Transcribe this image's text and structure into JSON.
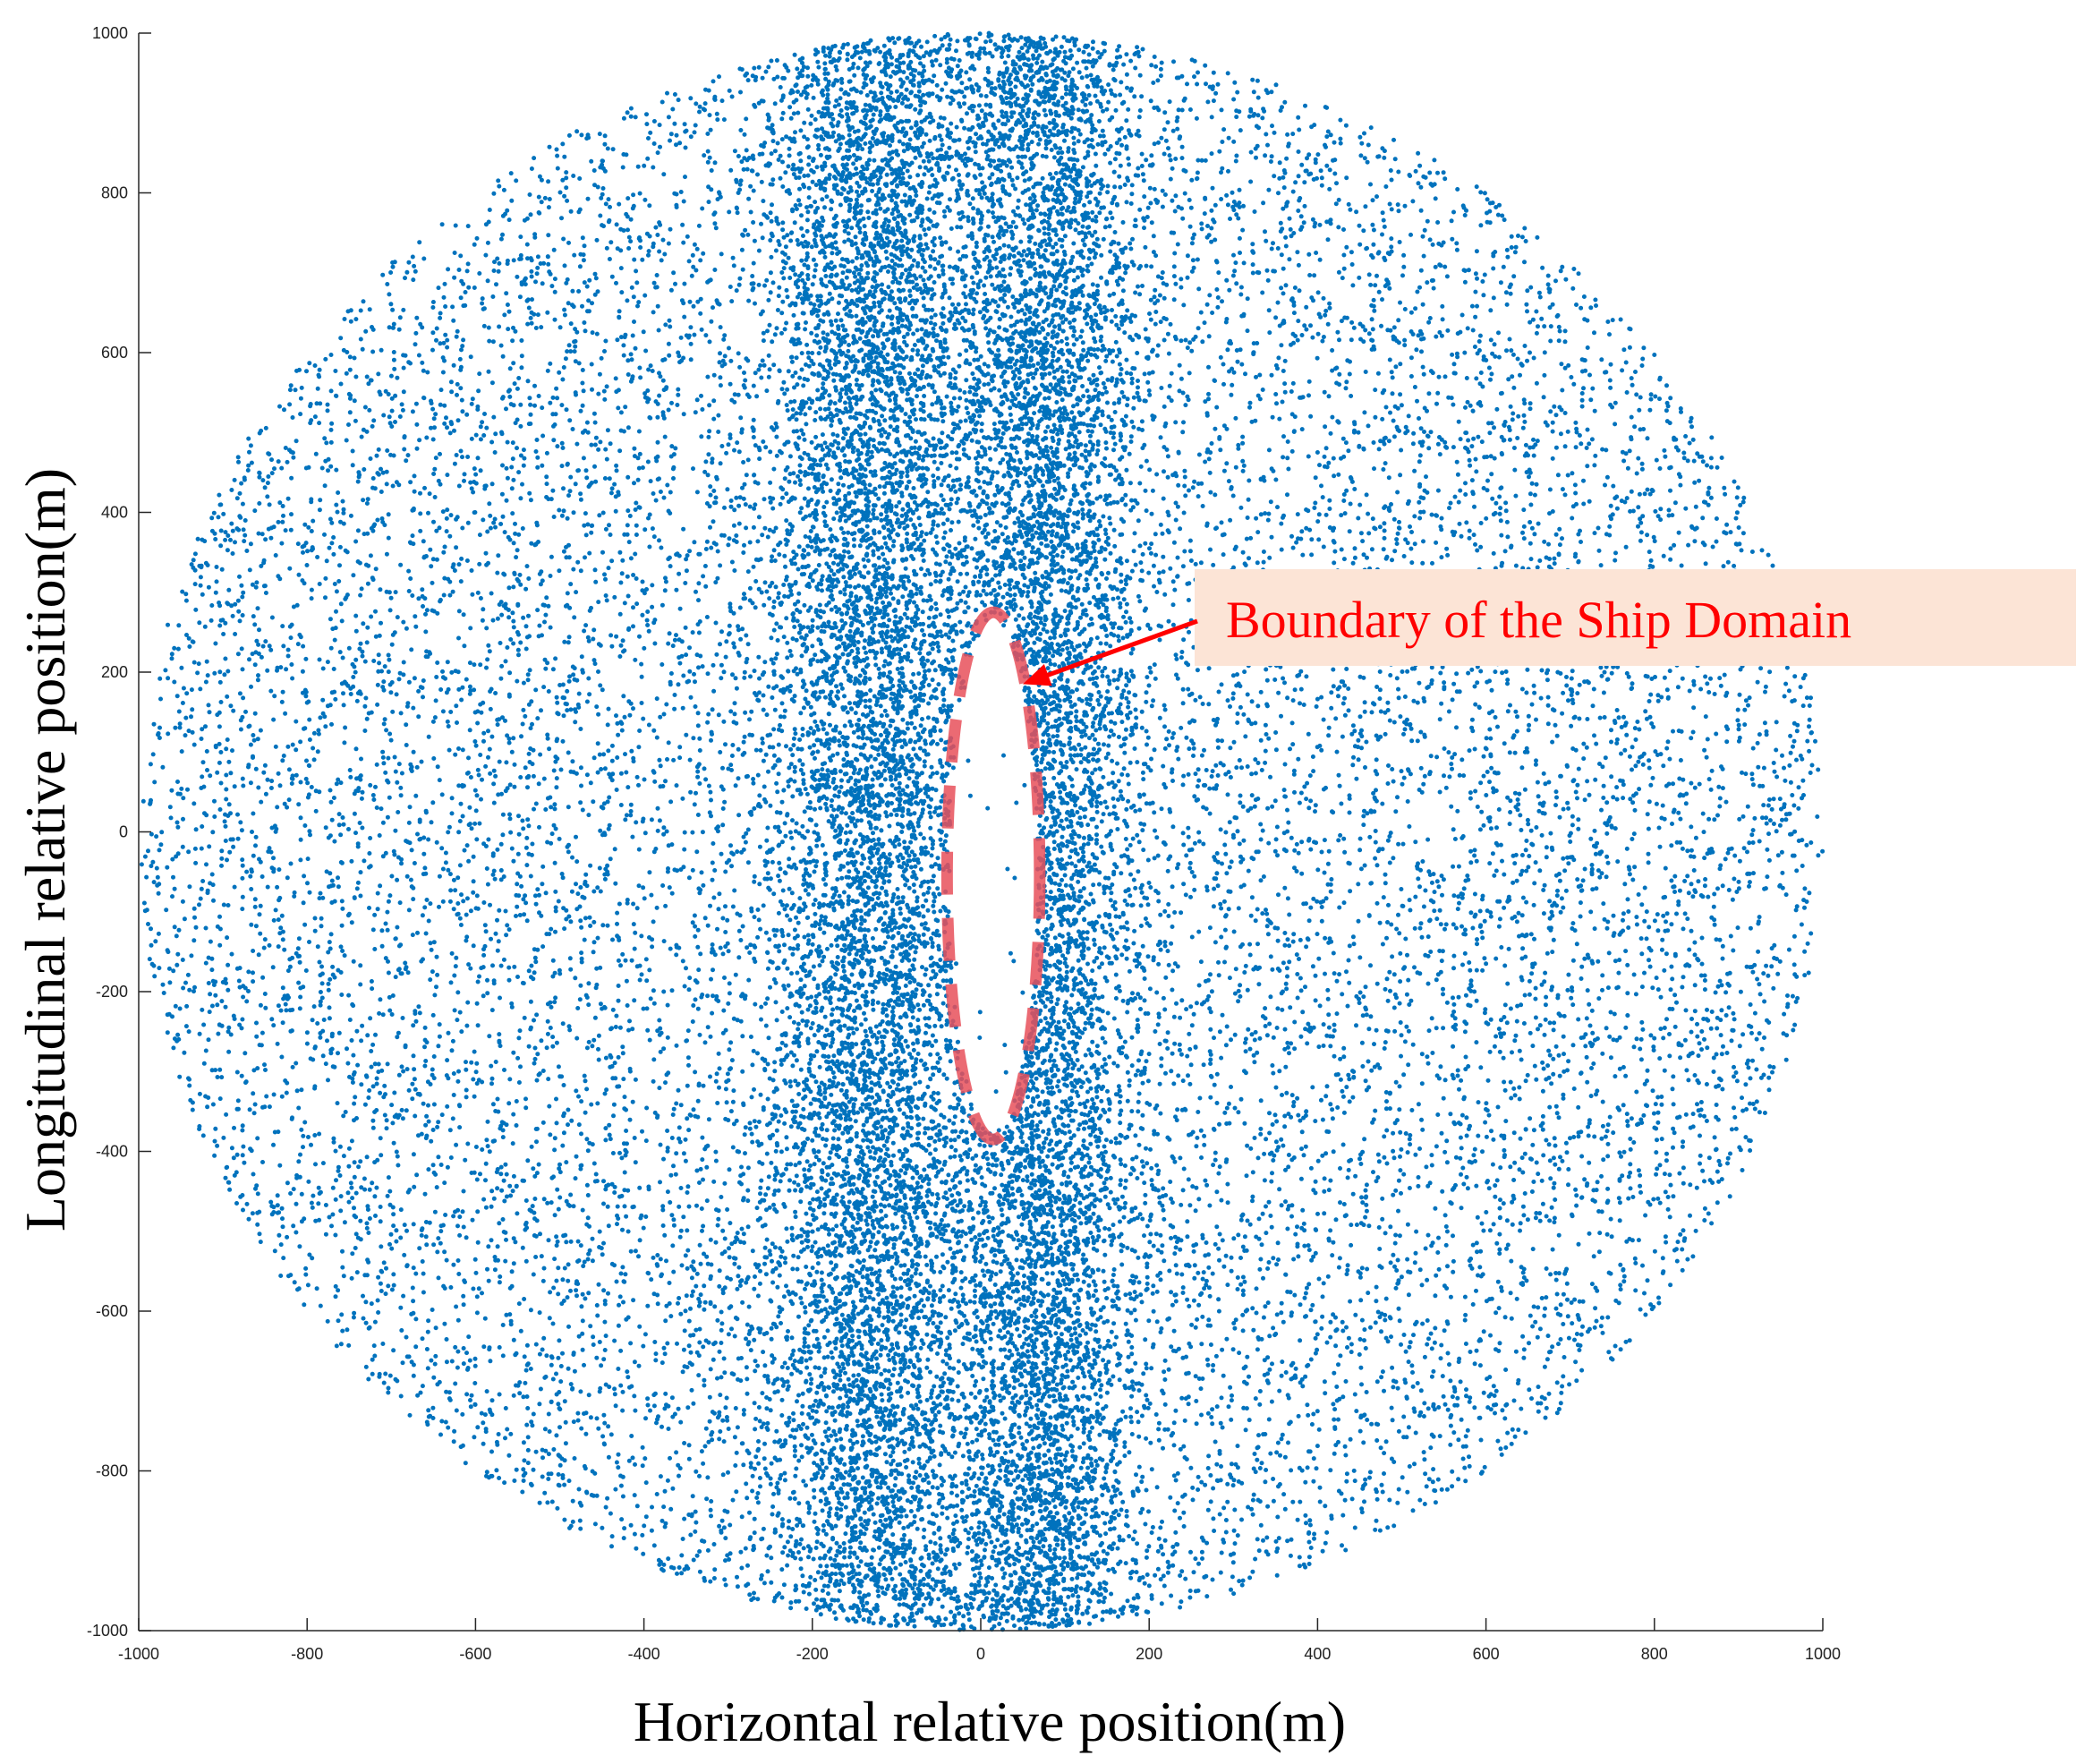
{
  "chart_data": {
    "type": "scatter",
    "title": "",
    "xlabel": "Horizontal relative position(m)",
    "ylabel": "Longitudinal relative position(m)",
    "xlim": [
      -1000,
      1000
    ],
    "ylim": [
      -1000,
      1000
    ],
    "xticks": [
      -1000,
      -800,
      -600,
      -400,
      -200,
      0,
      200,
      400,
      600,
      800,
      1000
    ],
    "yticks": [
      -1000,
      -800,
      -600,
      -400,
      -200,
      0,
      200,
      400,
      600,
      800,
      1000
    ],
    "grid": false,
    "legend": false,
    "series": [
      {
        "marker_color": "#0072BD",
        "description_points": "dense cloud of relative positions within a radius of ~1000 m, densest in a vertical band between x≈-250 and x≈200, with an empty region around the own ship near the origin",
        "cloud_radius": 1000,
        "dense_band": [
          -250,
          200
        ],
        "approx_point_count": 30000
      }
    ],
    "domain_boundary": {
      "shape": "ellipse",
      "center": [
        15,
        -55
      ],
      "semi_axis_x": 55,
      "semi_axis_y": 330,
      "color": "#E8505B",
      "style": "dashed"
    },
    "annotation": {
      "text": "Boundary of the Ship Domain",
      "color": "#FF0000",
      "box_color": "#FCE4D6",
      "arrow_color": "#FF0000",
      "arrow_target": [
        50,
        185
      ]
    }
  }
}
